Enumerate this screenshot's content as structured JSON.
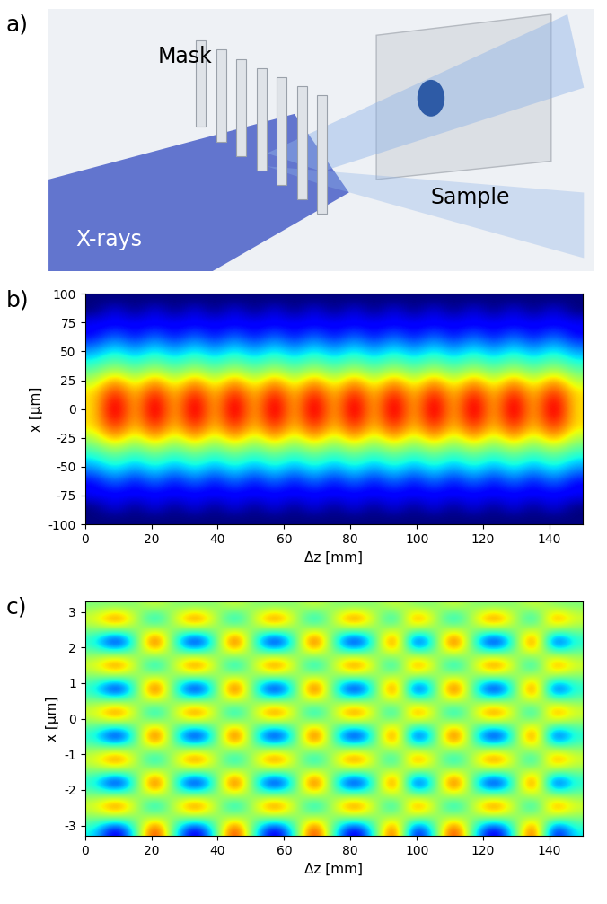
{
  "chart_data": [
    {
      "type": "diagram",
      "panel": "a)",
      "labels": [
        "Mask",
        "X-rays",
        "Sample"
      ]
    },
    {
      "type": "heatmap",
      "panel": "b)",
      "x_label": "Δz [mm]",
      "y_label": "x [µm]",
      "xlim": [
        0,
        150
      ],
      "ylim": [
        -100,
        100
      ],
      "xticks": [
        0,
        20,
        40,
        60,
        80,
        100,
        120,
        140
      ],
      "yticks": [
        -100,
        -75,
        -50,
        -25,
        0,
        25,
        50,
        75,
        100
      ],
      "cells": [
        [
          0,
          0,
          0,
          0,
          0,
          0,
          0,
          0,
          0,
          0,
          0,
          0,
          0,
          0,
          0,
          0,
          0,
          0,
          0,
          0,
          0,
          0,
          0,
          0,
          0
        ],
        [
          0,
          1,
          0,
          1,
          0,
          1,
          0,
          1,
          0,
          1,
          0,
          1,
          0,
          1,
          0,
          1,
          0,
          1,
          0,
          1,
          0,
          1,
          0,
          1,
          0
        ],
        [
          1,
          1,
          1,
          1,
          1,
          1,
          1,
          1,
          1,
          1,
          1,
          1,
          1,
          1,
          1,
          1,
          1,
          1,
          1,
          1,
          1,
          1,
          1,
          1,
          1
        ],
        [
          1,
          2,
          1,
          2,
          1,
          2,
          1,
          2,
          1,
          2,
          1,
          2,
          1,
          2,
          1,
          2,
          1,
          2,
          1,
          2,
          1,
          2,
          1,
          2,
          1
        ],
        [
          2,
          3,
          2,
          3,
          2,
          3,
          2,
          3,
          2,
          3,
          2,
          3,
          2,
          3,
          2,
          3,
          2,
          3,
          2,
          3,
          2,
          3,
          2,
          3,
          2
        ],
        [
          3,
          4,
          3,
          4,
          3,
          4,
          3,
          4,
          3,
          4,
          3,
          4,
          3,
          4,
          3,
          4,
          3,
          4,
          3,
          4,
          3,
          4,
          3,
          4,
          3
        ],
        [
          4,
          5,
          4,
          5,
          4,
          5,
          4,
          5,
          4,
          5,
          4,
          5,
          4,
          5,
          4,
          5,
          4,
          5,
          4,
          5,
          4,
          5,
          4,
          5,
          4
        ],
        [
          5,
          7,
          5,
          7,
          5,
          7,
          5,
          7,
          5,
          7,
          5,
          7,
          5,
          7,
          5,
          7,
          5,
          7,
          5,
          7,
          5,
          7,
          5,
          7,
          5
        ],
        [
          6,
          8,
          6,
          8,
          6,
          8,
          6,
          8,
          6,
          8,
          6,
          8,
          6,
          8,
          6,
          8,
          6,
          8,
          6,
          8,
          6,
          8,
          6,
          8,
          6
        ],
        [
          6,
          9,
          6,
          9,
          6,
          9,
          6,
          9,
          6,
          9,
          6,
          9,
          6,
          9,
          6,
          9,
          6,
          9,
          6,
          9,
          6,
          9,
          6,
          9,
          6
        ],
        [
          6,
          9,
          6,
          9,
          6,
          9,
          6,
          9,
          6,
          9,
          6,
          9,
          6,
          9,
          6,
          9,
          6,
          9,
          6,
          9,
          6,
          9,
          6,
          9,
          6
        ],
        [
          6,
          8,
          6,
          8,
          6,
          8,
          6,
          8,
          6,
          8,
          6,
          8,
          6,
          8,
          6,
          8,
          6,
          8,
          6,
          8,
          6,
          8,
          6,
          8,
          6
        ],
        [
          5,
          7,
          5,
          7,
          5,
          7,
          5,
          7,
          5,
          7,
          5,
          7,
          5,
          7,
          5,
          7,
          5,
          7,
          5,
          7,
          5,
          7,
          5,
          7,
          5
        ],
        [
          4,
          5,
          4,
          5,
          4,
          5,
          4,
          5,
          4,
          5,
          4,
          5,
          4,
          5,
          4,
          5,
          4,
          5,
          4,
          5,
          4,
          5,
          4,
          5,
          4
        ],
        [
          3,
          4,
          3,
          4,
          3,
          4,
          3,
          4,
          3,
          4,
          3,
          4,
          3,
          4,
          3,
          4,
          3,
          4,
          3,
          4,
          3,
          4,
          3,
          4,
          3
        ],
        [
          2,
          3,
          2,
          3,
          2,
          3,
          2,
          3,
          2,
          3,
          2,
          3,
          2,
          3,
          2,
          3,
          2,
          3,
          2,
          3,
          2,
          3,
          2,
          3,
          2
        ],
        [
          1,
          2,
          1,
          2,
          1,
          2,
          1,
          2,
          1,
          2,
          1,
          2,
          1,
          2,
          1,
          2,
          1,
          2,
          1,
          2,
          1,
          2,
          1,
          2,
          1
        ],
        [
          1,
          1,
          1,
          1,
          1,
          1,
          1,
          1,
          1,
          1,
          1,
          1,
          1,
          1,
          1,
          1,
          1,
          1,
          1,
          1,
          1,
          1,
          1,
          1,
          1
        ],
        [
          0,
          1,
          0,
          1,
          0,
          1,
          0,
          1,
          0,
          1,
          0,
          1,
          0,
          1,
          0,
          1,
          0,
          1,
          0,
          1,
          0,
          1,
          0,
          1,
          0
        ],
        [
          0,
          0,
          0,
          0,
          0,
          0,
          0,
          0,
          0,
          0,
          0,
          0,
          0,
          0,
          0,
          0,
          0,
          0,
          0,
          0,
          0,
          0,
          0,
          0,
          0
        ]
      ]
    },
    {
      "type": "heatmap",
      "panel": "c)",
      "x_label": "Δz [mm]",
      "y_label": "x [µm]",
      "xlim": [
        0,
        150
      ],
      "ylim": [
        -3.3,
        3.3
      ],
      "xticks": [
        0,
        20,
        40,
        60,
        80,
        100,
        120,
        140
      ],
      "yticks": [
        -3,
        -2,
        -1,
        0,
        1,
        2,
        3
      ],
      "cells": [
        [
          4,
          1,
          4,
          9,
          4,
          1,
          4,
          9,
          4,
          1,
          4,
          9,
          4,
          1,
          4,
          9,
          1,
          4,
          9,
          4,
          1,
          4,
          9,
          1,
          4
        ],
        [
          5,
          5,
          5,
          6,
          5,
          5,
          5,
          6,
          5,
          5,
          5,
          6,
          5,
          5,
          5,
          6,
          5,
          5,
          6,
          5,
          5,
          5,
          6,
          5,
          5
        ],
        [
          6,
          8,
          6,
          3,
          6,
          8,
          6,
          3,
          6,
          8,
          6,
          3,
          6,
          8,
          6,
          3,
          8,
          6,
          3,
          6,
          8,
          6,
          3,
          8,
          6
        ],
        [
          5,
          5,
          5,
          6,
          5,
          5,
          5,
          6,
          5,
          5,
          5,
          6,
          5,
          5,
          5,
          6,
          5,
          5,
          6,
          5,
          5,
          5,
          6,
          5,
          5
        ],
        [
          4,
          1,
          4,
          9,
          4,
          1,
          4,
          9,
          4,
          1,
          4,
          9,
          4,
          1,
          4,
          9,
          1,
          4,
          9,
          4,
          1,
          4,
          9,
          1,
          4
        ],
        [
          5,
          5,
          5,
          6,
          5,
          5,
          5,
          6,
          5,
          5,
          5,
          6,
          5,
          5,
          5,
          6,
          5,
          5,
          6,
          5,
          5,
          5,
          6,
          5,
          5
        ],
        [
          6,
          8,
          6,
          3,
          6,
          8,
          6,
          3,
          6,
          8,
          6,
          3,
          6,
          8,
          6,
          3,
          8,
          6,
          3,
          6,
          8,
          6,
          3,
          8,
          6
        ],
        [
          5,
          5,
          5,
          6,
          5,
          5,
          5,
          6,
          5,
          5,
          5,
          6,
          5,
          5,
          5,
          6,
          5,
          5,
          6,
          5,
          5,
          5,
          6,
          5,
          5
        ],
        [
          4,
          1,
          4,
          9,
          4,
          1,
          4,
          9,
          4,
          1,
          4,
          9,
          4,
          1,
          4,
          9,
          1,
          4,
          9,
          4,
          1,
          4,
          9,
          1,
          4
        ],
        [
          5,
          5,
          5,
          6,
          5,
          5,
          5,
          6,
          5,
          5,
          5,
          6,
          5,
          5,
          5,
          6,
          5,
          5,
          6,
          5,
          5,
          5,
          6,
          5,
          5
        ],
        [
          6,
          8,
          6,
          3,
          6,
          8,
          6,
          3,
          6,
          8,
          6,
          3,
          6,
          8,
          6,
          3,
          8,
          6,
          3,
          6,
          8,
          6,
          3,
          8,
          6
        ],
        [
          5,
          5,
          5,
          6,
          5,
          5,
          5,
          6,
          5,
          5,
          5,
          6,
          5,
          5,
          5,
          6,
          5,
          5,
          6,
          5,
          5,
          5,
          6,
          5,
          5
        ],
        [
          4,
          1,
          4,
          9,
          4,
          1,
          4,
          9,
          4,
          1,
          4,
          9,
          4,
          1,
          4,
          9,
          1,
          4,
          9,
          4,
          1,
          4,
          9,
          1,
          4
        ],
        [
          5,
          5,
          5,
          6,
          5,
          5,
          5,
          6,
          5,
          5,
          5,
          6,
          5,
          5,
          5,
          6,
          5,
          5,
          6,
          5,
          5,
          5,
          6,
          5,
          5
        ],
        [
          6,
          8,
          6,
          3,
          6,
          8,
          6,
          3,
          6,
          8,
          6,
          3,
          6,
          8,
          6,
          3,
          8,
          6,
          3,
          6,
          8,
          6,
          3,
          8,
          6
        ],
        [
          5,
          5,
          5,
          6,
          5,
          5,
          5,
          6,
          5,
          5,
          5,
          6,
          5,
          5,
          5,
          6,
          5,
          5,
          6,
          5,
          5,
          5,
          6,
          5,
          5
        ],
        [
          4,
          1,
          4,
          9,
          4,
          1,
          4,
          9,
          4,
          1,
          4,
          9,
          4,
          1,
          4,
          9,
          1,
          4,
          9,
          4,
          1,
          4,
          9,
          1,
          4
        ],
        [
          5,
          5,
          5,
          6,
          5,
          5,
          5,
          6,
          5,
          5,
          5,
          6,
          5,
          5,
          5,
          6,
          5,
          5,
          6,
          5,
          5,
          5,
          6,
          5,
          5
        ],
        [
          6,
          8,
          6,
          3,
          6,
          8,
          6,
          3,
          6,
          8,
          6,
          3,
          6,
          8,
          6,
          3,
          8,
          6,
          3,
          6,
          8,
          6,
          3,
          8,
          6
        ],
        [
          5,
          5,
          5,
          6,
          5,
          5,
          5,
          6,
          5,
          5,
          5,
          6,
          5,
          5,
          5,
          6,
          5,
          5,
          6,
          5,
          5,
          5,
          6,
          5,
          5
        ]
      ]
    }
  ]
}
